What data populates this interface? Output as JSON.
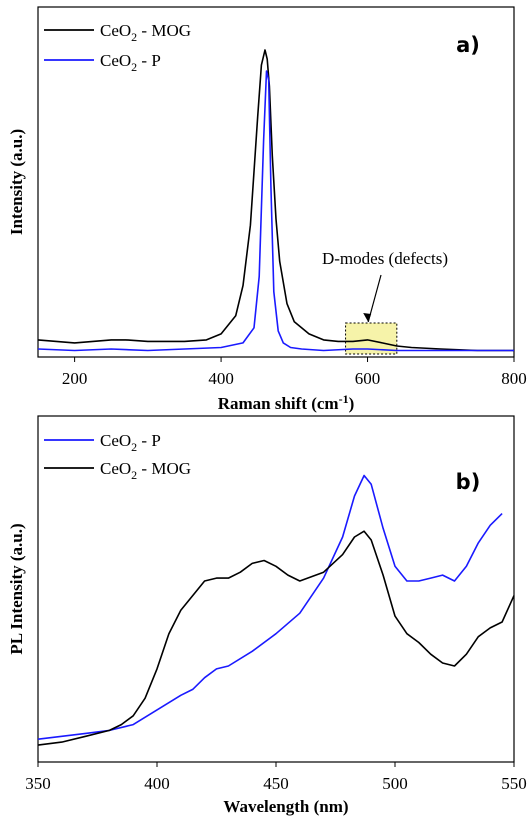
{
  "chart_data": [
    {
      "type": "line",
      "panel_label": "a)",
      "xlabel": "Raman shift (cm",
      "xlabel_sup": "-1",
      "xlabel_suffix": ")",
      "ylabel": "Intensity (a.u.)",
      "xlim": [
        150,
        800
      ],
      "ylim": [
        0,
        1.0
      ],
      "xticks": [
        200,
        400,
        600,
        800
      ],
      "grid": false,
      "legend_position": "top-left",
      "annotation": {
        "text": "D-modes (defects)",
        "x_range": [
          570,
          640
        ]
      },
      "series": [
        {
          "name": "CeO",
          "name_sub": "2",
          "name_suffix": " - MOG",
          "color": "#000000",
          "x": [
            150,
            200,
            250,
            270,
            300,
            350,
            380,
            400,
            420,
            430,
            440,
            450,
            455,
            460,
            463,
            466,
            470,
            475,
            480,
            490,
            500,
            520,
            540,
            560,
            580,
            600,
            620,
            640,
            660,
            700,
            750,
            800
          ],
          "y": [
            0.04,
            0.03,
            0.04,
            0.04,
            0.035,
            0.035,
            0.04,
            0.06,
            0.12,
            0.22,
            0.42,
            0.78,
            0.95,
            1.0,
            0.97,
            0.88,
            0.65,
            0.44,
            0.3,
            0.16,
            0.1,
            0.06,
            0.04,
            0.035,
            0.035,
            0.04,
            0.03,
            0.02,
            0.015,
            0.01,
            0.005,
            0.005
          ]
        },
        {
          "name": "CeO",
          "name_sub": "2",
          "name_suffix": " - P",
          "color": "#1a1aff",
          "x": [
            150,
            200,
            250,
            300,
            350,
            400,
            430,
            445,
            452,
            458,
            462,
            465,
            468,
            472,
            478,
            485,
            495,
            510,
            540,
            580,
            600,
            640,
            700,
            800
          ],
          "y": [
            0.01,
            0.005,
            0.01,
            0.005,
            0.01,
            0.015,
            0.03,
            0.08,
            0.25,
            0.7,
            0.93,
            0.9,
            0.55,
            0.2,
            0.07,
            0.03,
            0.015,
            0.01,
            0.005,
            0.01,
            0.01,
            0.005,
            0.005,
            0.005
          ]
        }
      ]
    },
    {
      "type": "line",
      "panel_label": "b)",
      "xlabel": "Wavelength (nm)",
      "ylabel": "PL Intensity (a.u.)",
      "xlim": [
        350,
        550
      ],
      "ylim": [
        0,
        1.0
      ],
      "xticks": [
        350,
        400,
        450,
        500,
        550
      ],
      "grid": false,
      "legend_position": "top-left",
      "series": [
        {
          "name": "CeO",
          "name_sub": "2",
          "name_suffix": " - P",
          "color": "#1a1aff",
          "x": [
            350,
            360,
            370,
            380,
            390,
            400,
            410,
            415,
            420,
            425,
            430,
            440,
            450,
            460,
            470,
            478,
            483,
            487,
            490,
            495,
            500,
            505,
            510,
            515,
            520,
            525,
            530,
            535,
            540,
            545
          ],
          "y": [
            0.03,
            0.04,
            0.05,
            0.06,
            0.08,
            0.13,
            0.18,
            0.2,
            0.24,
            0.27,
            0.28,
            0.33,
            0.39,
            0.46,
            0.58,
            0.72,
            0.86,
            0.93,
            0.9,
            0.75,
            0.62,
            0.57,
            0.57,
            0.58,
            0.59,
            0.57,
            0.62,
            0.7,
            0.76,
            0.8
          ]
        },
        {
          "name": "CeO",
          "name_sub": "2",
          "name_suffix": " - MOG",
          "color": "#000000",
          "x": [
            350,
            360,
            370,
            380,
            385,
            390,
            395,
            400,
            405,
            410,
            415,
            420,
            425,
            430,
            435,
            440,
            445,
            450,
            455,
            460,
            470,
            478,
            483,
            487,
            490,
            495,
            500,
            505,
            510,
            515,
            520,
            525,
            530,
            535,
            540,
            545,
            550
          ],
          "y": [
            0.01,
            0.02,
            0.04,
            0.06,
            0.08,
            0.11,
            0.17,
            0.27,
            0.39,
            0.47,
            0.52,
            0.57,
            0.58,
            0.58,
            0.6,
            0.63,
            0.64,
            0.62,
            0.59,
            0.57,
            0.6,
            0.66,
            0.72,
            0.74,
            0.71,
            0.59,
            0.45,
            0.39,
            0.36,
            0.32,
            0.29,
            0.28,
            0.32,
            0.38,
            0.41,
            0.43,
            0.52
          ]
        }
      ]
    }
  ]
}
